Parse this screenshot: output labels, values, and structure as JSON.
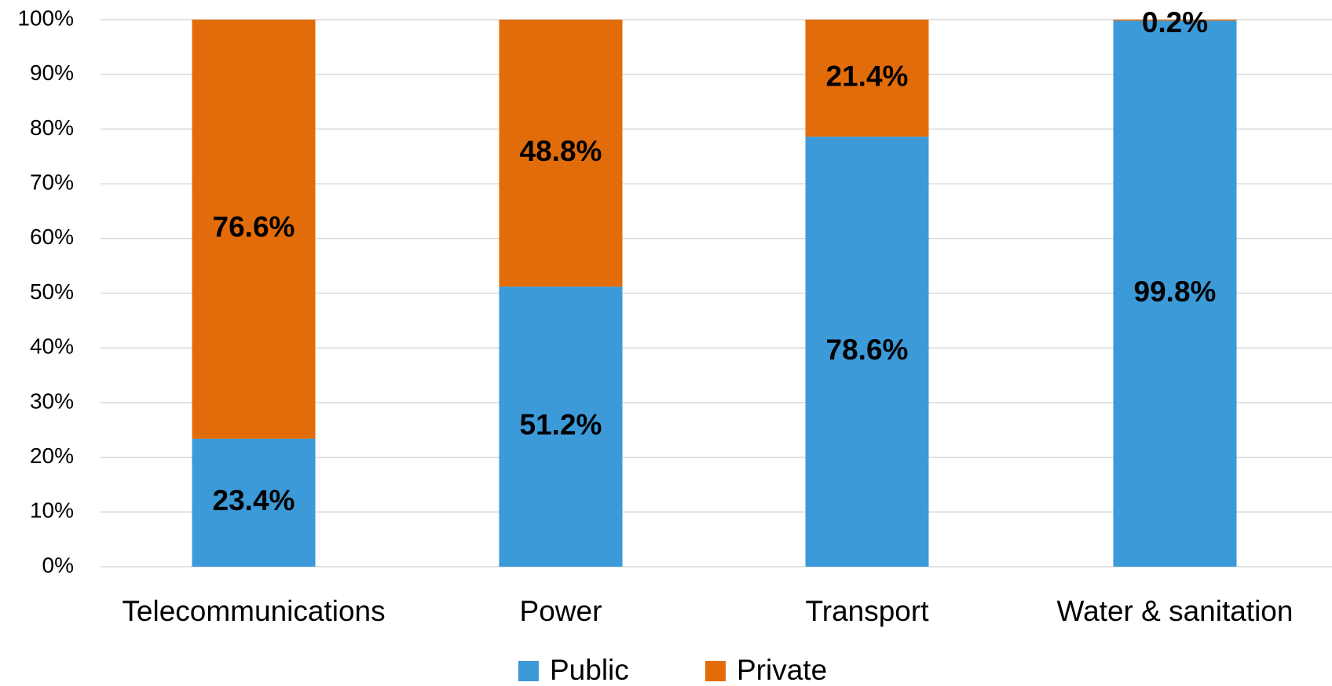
{
  "chart_data": {
    "type": "stacked_bar",
    "categories": [
      "Telecommunications",
      "Power",
      "Transport",
      "Water & sanitation"
    ],
    "series": [
      {
        "name": "Public",
        "color": "#3c9ad9",
        "values": [
          23.4,
          51.2,
          78.6,
          99.8
        ],
        "value_labels": [
          "23.4%",
          "51.2%",
          "78.6%",
          "99.8%"
        ]
      },
      {
        "name": "Private",
        "color": "#e36c0a",
        "values": [
          76.6,
          48.8,
          21.4,
          0.2
        ],
        "value_labels": [
          "76.6%",
          "48.8%",
          "21.4%",
          "0.2%"
        ]
      }
    ],
    "ylim": [
      0,
      100
    ],
    "yticks": [
      {
        "value": 0,
        "label": "0%"
      },
      {
        "value": 10,
        "label": "10%"
      },
      {
        "value": 20,
        "label": "20%"
      },
      {
        "value": 30,
        "label": "30%"
      },
      {
        "value": 40,
        "label": "40%"
      },
      {
        "value": 50,
        "label": "50%"
      },
      {
        "value": 60,
        "label": "60%"
      },
      {
        "value": 70,
        "label": "70%"
      },
      {
        "value": 80,
        "label": "80%"
      },
      {
        "value": 90,
        "label": "90%"
      },
      {
        "value": 100,
        "label": "100%"
      }
    ],
    "grid": true,
    "legend": "bottom"
  }
}
